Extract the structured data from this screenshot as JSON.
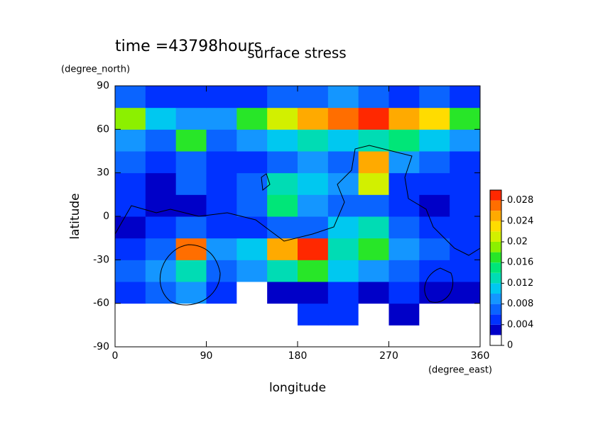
{
  "chart_data": {
    "type": "contour",
    "title": "surface stress",
    "subtitle": "time =43798hours",
    "x_label": "longitude",
    "x_unit": "(degree_east)",
    "y_label": "latitude",
    "y_unit": "(degree_north)",
    "x": [
      15,
      45,
      75,
      105,
      135,
      165,
      195,
      225,
      255,
      285,
      315,
      345
    ],
    "y": [
      -82.5,
      -67.5,
      -52.5,
      -37.5,
      -22.5,
      -7.5,
      7.5,
      22.5,
      37.5,
      52.5,
      67.5,
      82.5
    ],
    "values": [
      [
        0,
        0,
        0,
        0,
        0,
        0,
        0,
        0,
        0,
        0,
        0,
        0
      ],
      [
        0,
        0,
        0,
        0,
        0,
        0,
        0.004,
        0.004,
        0,
        0.003,
        0,
        0
      ],
      [
        0.004,
        0.006,
        0.008,
        0.004,
        0,
        0.003,
        0.003,
        0.004,
        0.003,
        0.005,
        0.003,
        0.003
      ],
      [
        0.006,
        0.008,
        0.012,
        0.006,
        0.008,
        0.012,
        0.016,
        0.01,
        0.008,
        0.006,
        0.005,
        0.004
      ],
      [
        0.005,
        0.006,
        0.026,
        0.008,
        0.01,
        0.024,
        0.03,
        0.012,
        0.016,
        0.008,
        0.006,
        0.004
      ],
      [
        0.003,
        0.004,
        0.006,
        0.005,
        0.004,
        0.006,
        0.006,
        0.01,
        0.012,
        0.006,
        0.004,
        0.005
      ],
      [
        0.004,
        0.003,
        0.002,
        0.005,
        0.006,
        0.014,
        0.008,
        0.006,
        0.006,
        0.005,
        0.003,
        0.004
      ],
      [
        0.004,
        0.003,
        0.006,
        0.004,
        0.006,
        0.012,
        0.01,
        0.008,
        0.02,
        0.005,
        0.004,
        0.004
      ],
      [
        0.006,
        0.005,
        0.006,
        0.004,
        0.005,
        0.006,
        0.008,
        0.006,
        0.024,
        0.008,
        0.006,
        0.004
      ],
      [
        0.008,
        0.006,
        0.016,
        0.006,
        0.008,
        0.01,
        0.012,
        0.01,
        0.012,
        0.014,
        0.01,
        0.008
      ],
      [
        0.018,
        0.01,
        0.008,
        0.008,
        0.016,
        0.02,
        0.024,
        0.026,
        0.03,
        0.024,
        0.022,
        0.016
      ],
      [
        0.006,
        0.004,
        0.005,
        0.004,
        0.005,
        0.006,
        0.006,
        0.008,
        0.006,
        0.004,
        0.006,
        0.005
      ]
    ],
    "levels": [
      0,
      0.002,
      0.004,
      0.006,
      0.008,
      0.01,
      0.012,
      0.014,
      0.016,
      0.018,
      0.02,
      0.022,
      0.024,
      0.026,
      0.028,
      0.03
    ],
    "colors": [
      "#ffffff",
      "#0000c8",
      "#0032ff",
      "#0a64ff",
      "#1496ff",
      "#00c8f0",
      "#00dcb4",
      "#00e678",
      "#28e628",
      "#8cf000",
      "#d2f000",
      "#ffdc00",
      "#ffaa00",
      "#ff6e00",
      "#ff2800"
    ],
    "colorbar_ticks": [
      0,
      0.004,
      0.008,
      0.012,
      0.016,
      0.02,
      0.024,
      0.028
    ],
    "xlim": [
      0,
      360
    ],
    "xticks": [
      0,
      90,
      180,
      270,
      360
    ],
    "ylim": [
      -90,
      90
    ],
    "yticks": [
      -90,
      -60,
      -30,
      0,
      30,
      60,
      90
    ]
  }
}
